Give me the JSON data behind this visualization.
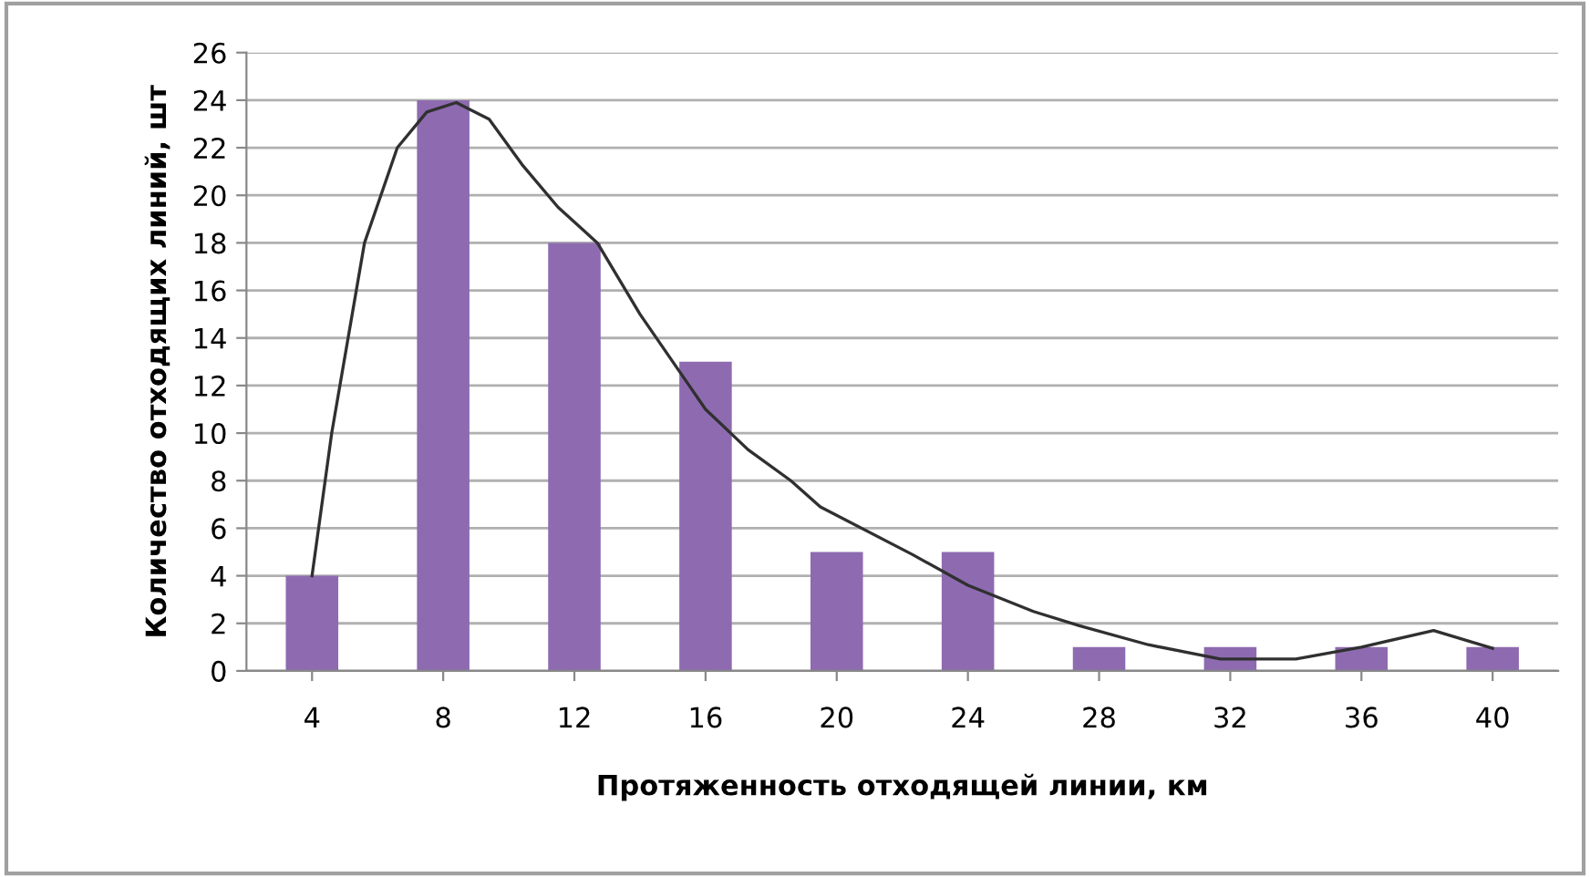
{
  "chart_data": {
    "type": "bar",
    "xlabel": "Протяженность отходящей линии, км",
    "ylabel": "Количество отходящих линий, шт",
    "x": [
      4,
      8,
      12,
      16,
      20,
      24,
      28,
      32,
      36,
      40
    ],
    "series": [
      {
        "color": "#8e6bb0",
        "values": [
          4,
          24,
          18,
          13,
          5,
          5,
          1,
          1,
          1,
          1
        ]
      },
      {
        "type": "line",
        "color": "#303030",
        "x": [
          4,
          4.6,
          5.6,
          6.6,
          7.5,
          8.4,
          9.4,
          10.4,
          11.5,
          12.7,
          14,
          16,
          17.3,
          18.6,
          19.5,
          22.3,
          24,
          26,
          27.4,
          29.5,
          31.7,
          34,
          36,
          38.2,
          40
        ],
        "values": [
          4,
          10,
          18,
          22,
          23.5,
          23.9,
          23.2,
          21.3,
          19.5,
          18,
          15,
          11,
          9.3,
          8,
          6.9,
          4.9,
          3.6,
          2.5,
          1.9,
          1.1,
          0.5,
          0.5,
          1,
          1.7,
          0.95
        ]
      }
    ],
    "xlim": [
      2,
      42
    ],
    "xticks": [
      4,
      8,
      12,
      16,
      20,
      24,
      28,
      32,
      36,
      40
    ],
    "ylim": [
      0,
      26
    ],
    "yticks": [
      0,
      2,
      4,
      6,
      8,
      10,
      12,
      14,
      16,
      18,
      20,
      22,
      24,
      26
    ],
    "grid": "y"
  }
}
